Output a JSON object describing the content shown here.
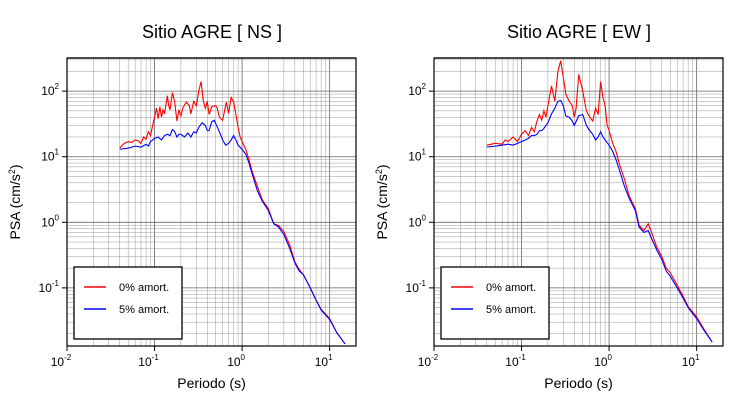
{
  "chart_data": [
    {
      "type": "line",
      "title": "Sitio AGRE [ NS ]",
      "xlabel": "Periodo (s)",
      "ylabel_text": "PSA (cm/s",
      "ylabel_exp": "2",
      "ylabel_close": ")",
      "x_scale": "log",
      "y_scale": "log",
      "xlim": [
        0.01,
        20
      ],
      "ylim": [
        0.013,
        320
      ],
      "grid": true,
      "x_ticks": [
        {
          "value": 0.01,
          "base": "10",
          "exp": "-2"
        },
        {
          "value": 0.1,
          "base": "10",
          "exp": "-1"
        },
        {
          "value": 1,
          "base": "10",
          "exp": "0"
        },
        {
          "value": 10,
          "base": "10",
          "exp": "1"
        }
      ],
      "y_ticks": [
        {
          "value": 0.1,
          "base": "10",
          "exp": "-1"
        },
        {
          "value": 1,
          "base": "10",
          "exp": "0"
        },
        {
          "value": 10,
          "base": "10",
          "exp": "1"
        },
        {
          "value": 100,
          "base": "10",
          "exp": "2"
        }
      ],
      "legend": {
        "placement": "bottom-left"
      },
      "series": [
        {
          "name": "0% amort.",
          "color": "#ff0000",
          "points": [
            [
              0.04,
              13.5
            ],
            [
              0.045,
              16
            ],
            [
              0.05,
              17
            ],
            [
              0.055,
              16.5
            ],
            [
              0.06,
              18
            ],
            [
              0.065,
              17.5
            ],
            [
              0.07,
              16
            ],
            [
              0.075,
              20
            ],
            [
              0.08,
              18.5
            ],
            [
              0.085,
              24
            ],
            [
              0.09,
              21
            ],
            [
              0.095,
              30
            ],
            [
              0.1,
              40
            ],
            [
              0.105,
              55
            ],
            [
              0.11,
              38
            ],
            [
              0.115,
              58
            ],
            [
              0.12,
              40
            ],
            [
              0.125,
              52
            ],
            [
              0.13,
              45
            ],
            [
              0.14,
              85
            ],
            [
              0.145,
              60
            ],
            [
              0.15,
              52
            ],
            [
              0.16,
              95
            ],
            [
              0.17,
              68
            ],
            [
              0.18,
              35
            ],
            [
              0.19,
              52
            ],
            [
              0.2,
              42
            ],
            [
              0.21,
              55
            ],
            [
              0.23,
              68
            ],
            [
              0.25,
              60
            ],
            [
              0.26,
              45
            ],
            [
              0.28,
              70
            ],
            [
              0.3,
              60
            ],
            [
              0.32,
              100
            ],
            [
              0.34,
              140
            ],
            [
              0.36,
              72
            ],
            [
              0.38,
              55
            ],
            [
              0.4,
              70
            ],
            [
              0.42,
              44
            ],
            [
              0.45,
              58
            ],
            [
              0.5,
              60
            ],
            [
              0.52,
              55
            ],
            [
              0.55,
              40
            ],
            [
              0.6,
              36
            ],
            [
              0.63,
              50
            ],
            [
              0.66,
              68
            ],
            [
              0.7,
              46
            ],
            [
              0.75,
              80
            ],
            [
              0.8,
              68
            ],
            [
              0.85,
              44
            ],
            [
              0.9,
              28
            ],
            [
              0.95,
              20
            ],
            [
              1.0,
              17
            ],
            [
              1.1,
              13
            ],
            [
              1.2,
              9
            ],
            [
              1.3,
              6
            ],
            [
              1.5,
              3.5
            ],
            [
              1.7,
              2.2
            ],
            [
              2.0,
              1.6
            ],
            [
              2.3,
              0.95
            ],
            [
              2.6,
              0.9
            ],
            [
              3.0,
              0.72
            ],
            [
              3.5,
              0.45
            ],
            [
              4.0,
              0.25
            ],
            [
              4.5,
              0.19
            ],
            [
              5.0,
              0.16
            ],
            [
              6.0,
              0.1
            ],
            [
              7.0,
              0.065
            ],
            [
              8.0,
              0.047
            ],
            [
              10.0,
              0.034
            ],
            [
              12.0,
              0.021
            ],
            [
              15.0,
              0.014
            ]
          ]
        },
        {
          "name": "5% amort.",
          "color": "#0000ff",
          "points": [
            [
              0.04,
              13
            ],
            [
              0.05,
              13.5
            ],
            [
              0.06,
              14.5
            ],
            [
              0.07,
              14
            ],
            [
              0.08,
              15.5
            ],
            [
              0.085,
              14.5
            ],
            [
              0.09,
              17
            ],
            [
              0.1,
              19
            ],
            [
              0.11,
              20
            ],
            [
              0.12,
              18
            ],
            [
              0.13,
              21
            ],
            [
              0.14,
              22
            ],
            [
              0.15,
              21
            ],
            [
              0.16,
              26
            ],
            [
              0.17,
              24
            ],
            [
              0.18,
              20
            ],
            [
              0.19,
              22
            ],
            [
              0.2,
              22
            ],
            [
              0.22,
              20
            ],
            [
              0.24,
              23
            ],
            [
              0.26,
              20
            ],
            [
              0.28,
              24
            ],
            [
              0.3,
              23
            ],
            [
              0.32,
              28
            ],
            [
              0.35,
              33
            ],
            [
              0.38,
              30
            ],
            [
              0.4,
              25
            ],
            [
              0.42,
              25
            ],
            [
              0.45,
              34
            ],
            [
              0.48,
              36
            ],
            [
              0.5,
              32
            ],
            [
              0.55,
              24
            ],
            [
              0.6,
              18
            ],
            [
              0.65,
              15
            ],
            [
              0.7,
              16
            ],
            [
              0.75,
              18
            ],
            [
              0.8,
              21
            ],
            [
              0.85,
              18
            ],
            [
              0.9,
              15
            ],
            [
              1.0,
              13
            ],
            [
              1.1,
              11
            ],
            [
              1.2,
              8
            ],
            [
              1.3,
              5.5
            ],
            [
              1.5,
              3
            ],
            [
              1.7,
              2.1
            ],
            [
              2.0,
              1.5
            ],
            [
              2.3,
              0.95
            ],
            [
              2.6,
              0.85
            ],
            [
              3.0,
              0.65
            ],
            [
              3.5,
              0.4
            ],
            [
              4.0,
              0.24
            ],
            [
              4.5,
              0.18
            ],
            [
              5.0,
              0.16
            ],
            [
              6.0,
              0.1
            ],
            [
              7.0,
              0.065
            ],
            [
              8.0,
              0.046
            ],
            [
              10.0,
              0.033
            ],
            [
              12.0,
              0.021
            ],
            [
              15.0,
              0.014
            ]
          ]
        }
      ]
    },
    {
      "type": "line",
      "title": "Sitio AGRE [ EW ]",
      "xlabel": "Periodo (s)",
      "ylabel_text": "PSA (cm/s",
      "ylabel_exp": "2",
      "ylabel_close": ")",
      "x_scale": "log",
      "y_scale": "log",
      "xlim": [
        0.01,
        20
      ],
      "ylim": [
        0.013,
        320
      ],
      "grid": true,
      "x_ticks": [
        {
          "value": 0.01,
          "base": "10",
          "exp": "-2"
        },
        {
          "value": 0.1,
          "base": "10",
          "exp": "-1"
        },
        {
          "value": 1,
          "base": "10",
          "exp": "0"
        },
        {
          "value": 10,
          "base": "10",
          "exp": "1"
        }
      ],
      "y_ticks": [
        {
          "value": 0.1,
          "base": "10",
          "exp": "-1"
        },
        {
          "value": 1,
          "base": "10",
          "exp": "0"
        },
        {
          "value": 10,
          "base": "10",
          "exp": "1"
        },
        {
          "value": 100,
          "base": "10",
          "exp": "2"
        }
      ],
      "legend": {
        "placement": "bottom-left"
      },
      "series": [
        {
          "name": "0% amort.",
          "color": "#ff0000",
          "points": [
            [
              0.04,
              15
            ],
            [
              0.05,
              16
            ],
            [
              0.06,
              15.5
            ],
            [
              0.065,
              18
            ],
            [
              0.07,
              17
            ],
            [
              0.08,
              20
            ],
            [
              0.09,
              17
            ],
            [
              0.1,
              22
            ],
            [
              0.11,
              25
            ],
            [
              0.12,
              21
            ],
            [
              0.13,
              28
            ],
            [
              0.14,
              24
            ],
            [
              0.15,
              35
            ],
            [
              0.16,
              44
            ],
            [
              0.17,
              36
            ],
            [
              0.18,
              50
            ],
            [
              0.19,
              40
            ],
            [
              0.2,
              60
            ],
            [
              0.22,
              120
            ],
            [
              0.24,
              70
            ],
            [
              0.26,
              200
            ],
            [
              0.28,
              290
            ],
            [
              0.3,
              160
            ],
            [
              0.32,
              90
            ],
            [
              0.35,
              70
            ],
            [
              0.38,
              60
            ],
            [
              0.4,
              40
            ],
            [
              0.42,
              55
            ],
            [
              0.45,
              180
            ],
            [
              0.5,
              100
            ],
            [
              0.55,
              50
            ],
            [
              0.6,
              40
            ],
            [
              0.65,
              35
            ],
            [
              0.7,
              55
            ],
            [
              0.75,
              44
            ],
            [
              0.8,
              140
            ],
            [
              0.85,
              80
            ],
            [
              0.9,
              60
            ],
            [
              0.95,
              30
            ],
            [
              1.0,
              25
            ],
            [
              1.1,
              16
            ],
            [
              1.2,
              12
            ],
            [
              1.3,
              8
            ],
            [
              1.5,
              4.5
            ],
            [
              1.7,
              2.5
            ],
            [
              2.0,
              1.6
            ],
            [
              2.2,
              0.9
            ],
            [
              2.5,
              0.75
            ],
            [
              2.8,
              0.95
            ],
            [
              3.0,
              0.75
            ],
            [
              3.5,
              0.42
            ],
            [
              4.0,
              0.3
            ],
            [
              4.5,
              0.2
            ],
            [
              5.0,
              0.17
            ],
            [
              6.0,
              0.11
            ],
            [
              7.0,
              0.075
            ],
            [
              8.0,
              0.052
            ],
            [
              10.0,
              0.036
            ],
            [
              12.0,
              0.024
            ],
            [
              15.0,
              0.015
            ]
          ]
        },
        {
          "name": "5% amort.",
          "color": "#0000ff",
          "points": [
            [
              0.04,
              14
            ],
            [
              0.05,
              14.5
            ],
            [
              0.06,
              15
            ],
            [
              0.07,
              15.5
            ],
            [
              0.08,
              15
            ],
            [
              0.09,
              16
            ],
            [
              0.1,
              17
            ],
            [
              0.11,
              18
            ],
            [
              0.12,
              19
            ],
            [
              0.13,
              21
            ],
            [
              0.14,
              21
            ],
            [
              0.15,
              22
            ],
            [
              0.16,
              25
            ],
            [
              0.17,
              25
            ],
            [
              0.18,
              27
            ],
            [
              0.2,
              33
            ],
            [
              0.22,
              45
            ],
            [
              0.24,
              55
            ],
            [
              0.26,
              70
            ],
            [
              0.28,
              72
            ],
            [
              0.3,
              60
            ],
            [
              0.32,
              42
            ],
            [
              0.35,
              40
            ],
            [
              0.38,
              35
            ],
            [
              0.4,
              30
            ],
            [
              0.45,
              42
            ],
            [
              0.5,
              44
            ],
            [
              0.55,
              30
            ],
            [
              0.6,
              25
            ],
            [
              0.65,
              22
            ],
            [
              0.7,
              18
            ],
            [
              0.75,
              20
            ],
            [
              0.8,
              24
            ],
            [
              0.85,
              20
            ],
            [
              0.9,
              18
            ],
            [
              1.0,
              15
            ],
            [
              1.1,
              12
            ],
            [
              1.2,
              9
            ],
            [
              1.3,
              6.5
            ],
            [
              1.5,
              3.5
            ],
            [
              1.7,
              2.3
            ],
            [
              2.0,
              1.5
            ],
            [
              2.2,
              0.85
            ],
            [
              2.5,
              0.7
            ],
            [
              2.8,
              0.75
            ],
            [
              3.0,
              0.6
            ],
            [
              3.5,
              0.38
            ],
            [
              4.0,
              0.27
            ],
            [
              4.5,
              0.18
            ],
            [
              5.0,
              0.15
            ],
            [
              6.0,
              0.1
            ],
            [
              7.0,
              0.07
            ],
            [
              8.0,
              0.05
            ],
            [
              10.0,
              0.034
            ],
            [
              12.0,
              0.023
            ],
            [
              15.0,
              0.015
            ]
          ]
        }
      ]
    }
  ]
}
